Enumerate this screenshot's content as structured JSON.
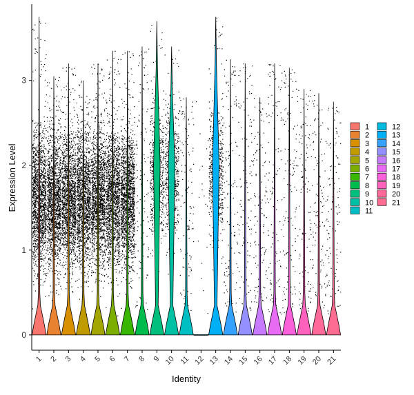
{
  "chart_data": {
    "type": "violin",
    "title": "",
    "xlabel": "Identity",
    "ylabel": "Expression Level",
    "ylim": [
      -0.18,
      3.9
    ],
    "y_ticks": [
      0,
      1,
      2,
      3
    ],
    "grid": false,
    "legend_position": "right",
    "categories": [
      "1",
      "2",
      "3",
      "4",
      "5",
      "6",
      "7",
      "8",
      "9",
      "10",
      "11",
      "12",
      "13",
      "14",
      "15",
      "16",
      "17",
      "18",
      "19",
      "20",
      "21"
    ],
    "colors": [
      "#F8766D",
      "#EA8331",
      "#D89000",
      "#C09B00",
      "#A3A500",
      "#7CAE00",
      "#39B600",
      "#00BB4E",
      "#00BF7D",
      "#00C1A3",
      "#00BFC4",
      "#00BAE0",
      "#00B0F6",
      "#35A2FF",
      "#9590FF",
      "#C77CFF",
      "#E76BF3",
      "#FA62DB",
      "#FF62BC",
      "#FF6A98",
      "#FF6C91"
    ],
    "series": [
      {
        "name": "1",
        "max": 3.75,
        "zero_fraction": 0.05,
        "density": "high"
      },
      {
        "name": "2",
        "max": 3.05,
        "zero_fraction": 0.06,
        "density": "high"
      },
      {
        "name": "3",
        "max": 3.2,
        "zero_fraction": 0.06,
        "density": "high"
      },
      {
        "name": "4",
        "max": 3.0,
        "zero_fraction": 0.06,
        "density": "high"
      },
      {
        "name": "5",
        "max": 3.2,
        "zero_fraction": 0.06,
        "density": "high"
      },
      {
        "name": "6",
        "max": 3.35,
        "zero_fraction": 0.06,
        "density": "high"
      },
      {
        "name": "7",
        "max": 3.35,
        "zero_fraction": 0.06,
        "density": "high"
      },
      {
        "name": "8",
        "max": 3.4,
        "zero_fraction": 0.3,
        "density": "low"
      },
      {
        "name": "9",
        "max": 3.7,
        "zero_fraction": 0.1,
        "density": "medium"
      },
      {
        "name": "10",
        "max": 3.4,
        "zero_fraction": 0.12,
        "density": "medium"
      },
      {
        "name": "11",
        "max": 2.8,
        "zero_fraction": 0.4,
        "density": "low"
      },
      {
        "name": "12",
        "max": 3.0,
        "zero_fraction": 0.9,
        "density": "very-low"
      },
      {
        "name": "13",
        "max": 3.75,
        "zero_fraction": 0.3,
        "density": "medium"
      },
      {
        "name": "14",
        "max": 3.25,
        "zero_fraction": 0.6,
        "density": "low"
      },
      {
        "name": "15",
        "max": 3.2,
        "zero_fraction": 0.7,
        "density": "low"
      },
      {
        "name": "16",
        "max": 2.8,
        "zero_fraction": 0.6,
        "density": "low"
      },
      {
        "name": "17",
        "max": 3.2,
        "zero_fraction": 0.6,
        "density": "low"
      },
      {
        "name": "18",
        "max": 3.15,
        "zero_fraction": 0.5,
        "density": "low"
      },
      {
        "name": "19",
        "max": 2.9,
        "zero_fraction": 0.5,
        "density": "low"
      },
      {
        "name": "20",
        "max": 2.85,
        "zero_fraction": 0.7,
        "density": "low"
      },
      {
        "name": "21",
        "max": 2.75,
        "zero_fraction": 0.6,
        "density": "low"
      }
    ]
  }
}
